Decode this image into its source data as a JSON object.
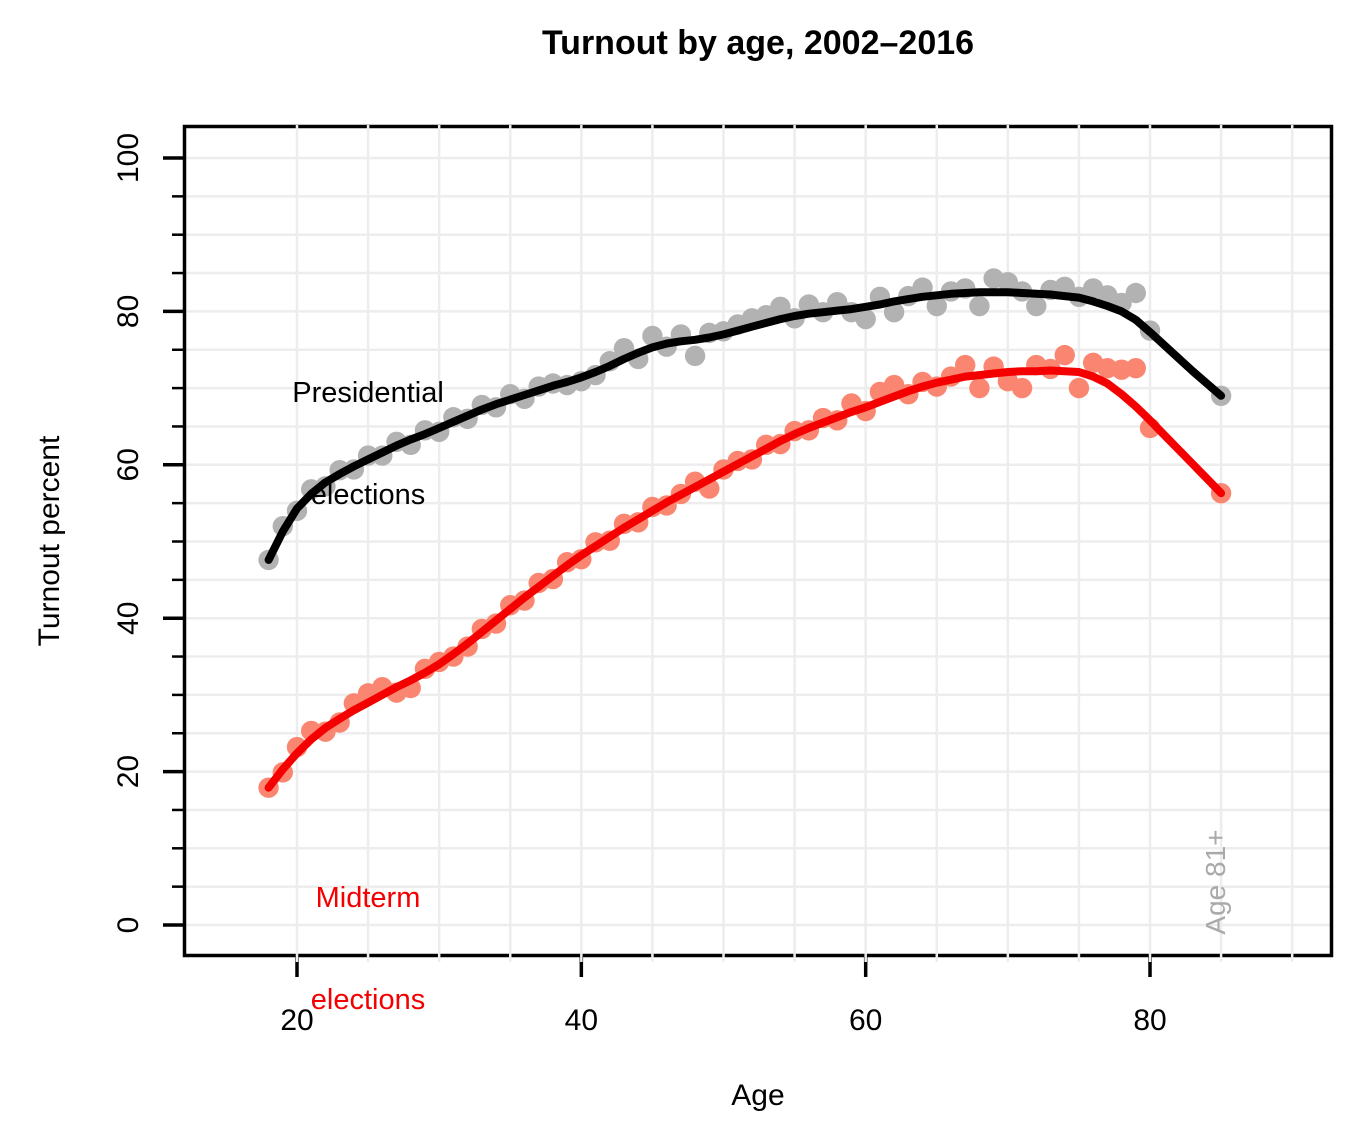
{
  "title": "Turnout by age, 2002–2016",
  "chart_data": {
    "type": "scatter",
    "title": "Turnout by age, 2002–2016",
    "xlabel": "Age",
    "ylabel": "Turnout percent",
    "xlim": [
      11.9,
      92.8
    ],
    "ylim": [
      -4.3,
      104.3
    ],
    "grid": {
      "color": "#ededed",
      "x_from": 20,
      "x_to": 90,
      "x_step": 5,
      "y_from": 0,
      "y_to": 100,
      "y_step": 5
    },
    "x_axis": {
      "label": "Age",
      "ticks_major": [
        20,
        40,
        60,
        80
      ]
    },
    "y_axis": {
      "label": "Turnout percent",
      "ticks_major": [
        0,
        20,
        40,
        60,
        80,
        100
      ],
      "ticks_minor": [
        5,
        10,
        15,
        25,
        30,
        35,
        45,
        50,
        55,
        65,
        70,
        75,
        85,
        90,
        95
      ]
    },
    "ages": [
      18,
      19,
      20,
      21,
      22,
      23,
      24,
      25,
      26,
      27,
      28,
      29,
      30,
      31,
      32,
      33,
      34,
      35,
      36,
      37,
      38,
      39,
      40,
      41,
      42,
      43,
      44,
      45,
      46,
      47,
      48,
      49,
      50,
      51,
      52,
      53,
      54,
      55,
      56,
      57,
      58,
      59,
      60,
      61,
      62,
      63,
      64,
      65,
      66,
      67,
      68,
      69,
      70,
      71,
      72,
      73,
      74,
      75,
      76,
      77,
      78,
      79,
      80,
      81,
      82,
      83,
      84,
      85
    ],
    "series": [
      {
        "name": "Presidential elections",
        "point_color": "#b2b2b2",
        "line_color": "#000000",
        "points": [
          47.6,
          52.0,
          54.0,
          56.8,
          57.2,
          59.3,
          59.4,
          61.2,
          61.2,
          63.0,
          62.6,
          64.5,
          64.3,
          66.2,
          66.0,
          67.8,
          67.5,
          69.2,
          68.6,
          70.2,
          70.6,
          70.4,
          70.9,
          71.7,
          73.5,
          75.2,
          73.8,
          76.8,
          75.4,
          77.0,
          74.2,
          77.2,
          77.4,
          78.3,
          79.1,
          79.5,
          80.6,
          79.1,
          80.9,
          79.9,
          81.2,
          79.9,
          79.0,
          81.9,
          79.9,
          82.0,
          83.1,
          80.7,
          82.6,
          83.0,
          80.7,
          84.3,
          83.8,
          82.6,
          80.7,
          82.8,
          83.2,
          81.9,
          83.0,
          82.1,
          81.1,
          82.4,
          77.5,
          null,
          null,
          null,
          null,
          69.0
        ],
        "smooth": [
          47.6,
          51.3,
          54.3,
          56.2,
          57.7,
          58.8,
          59.8,
          60.7,
          61.6,
          62.5,
          63.3,
          64.0,
          64.8,
          65.6,
          66.4,
          67.2,
          67.9,
          68.5,
          69.1,
          69.7,
          70.3,
          70.8,
          71.4,
          72.1,
          72.9,
          73.8,
          74.6,
          75.3,
          75.8,
          76.1,
          76.3,
          76.6,
          77.0,
          77.5,
          78.0,
          78.5,
          79.0,
          79.4,
          79.7,
          79.9,
          80.1,
          80.3,
          80.6,
          80.9,
          81.3,
          81.6,
          81.9,
          82.1,
          82.3,
          82.4,
          82.5,
          82.5,
          82.5,
          82.4,
          82.3,
          82.2,
          82.0,
          81.8,
          81.3,
          80.7,
          80.0,
          78.9,
          77.3,
          75.6,
          73.9,
          72.2,
          70.6,
          69.0
        ]
      },
      {
        "name": "Midterm elections",
        "point_color": "#fa8672",
        "line_color": "#f40000",
        "points": [
          17.9,
          19.9,
          23.2,
          25.3,
          25.2,
          26.4,
          28.9,
          30.2,
          31.0,
          30.3,
          30.9,
          33.4,
          34.3,
          35.0,
          36.3,
          38.6,
          39.3,
          41.7,
          42.3,
          44.6,
          45.1,
          47.3,
          47.7,
          49.9,
          50.1,
          52.3,
          52.5,
          54.5,
          54.7,
          56.2,
          57.8,
          56.9,
          59.4,
          60.5,
          60.7,
          62.6,
          62.7,
          64.4,
          64.5,
          66.1,
          65.8,
          68.0,
          67.0,
          69.5,
          70.4,
          69.2,
          70.8,
          70.2,
          71.5,
          73.0,
          70.0,
          72.8,
          70.9,
          70.0,
          73.0,
          72.5,
          74.3,
          70.0,
          73.3,
          72.6,
          72.4,
          72.6,
          64.8,
          null,
          null,
          null,
          null,
          56.3
        ],
        "smooth": [
          17.9,
          20.3,
          22.4,
          24.2,
          25.7,
          26.9,
          28.0,
          29.0,
          30.0,
          31.0,
          31.9,
          32.9,
          34.0,
          35.3,
          36.7,
          38.2,
          39.7,
          41.2,
          42.7,
          44.1,
          45.5,
          46.9,
          48.2,
          49.4,
          50.6,
          51.8,
          52.9,
          54.0,
          55.1,
          56.1,
          57.1,
          58.1,
          59.1,
          60.1,
          61.1,
          62.1,
          63.1,
          64.0,
          64.8,
          65.5,
          66.2,
          66.9,
          67.5,
          68.2,
          68.9,
          69.6,
          70.2,
          70.7,
          71.1,
          71.5,
          71.7,
          71.9,
          72.1,
          72.2,
          72.2,
          72.3,
          72.2,
          72.1,
          71.5,
          70.6,
          69.2,
          67.6,
          65.8,
          63.9,
          62.0,
          60.1,
          58.2,
          56.3
        ]
      }
    ],
    "annotations": {
      "presidential": {
        "line1": "Presidential",
        "line2": "elections",
        "color": "#000000",
        "x_age": 25,
        "y_val": 75.5
      },
      "midterm": {
        "line1": "Midterm",
        "line2": "elections",
        "color": "#f40000",
        "x_age": 25,
        "y_val": 10
      },
      "age81": {
        "text": "Age 81+",
        "color": "#a9a9a9",
        "x_age": 85,
        "y_val": 5.5
      }
    },
    "legend_position": "none"
  }
}
